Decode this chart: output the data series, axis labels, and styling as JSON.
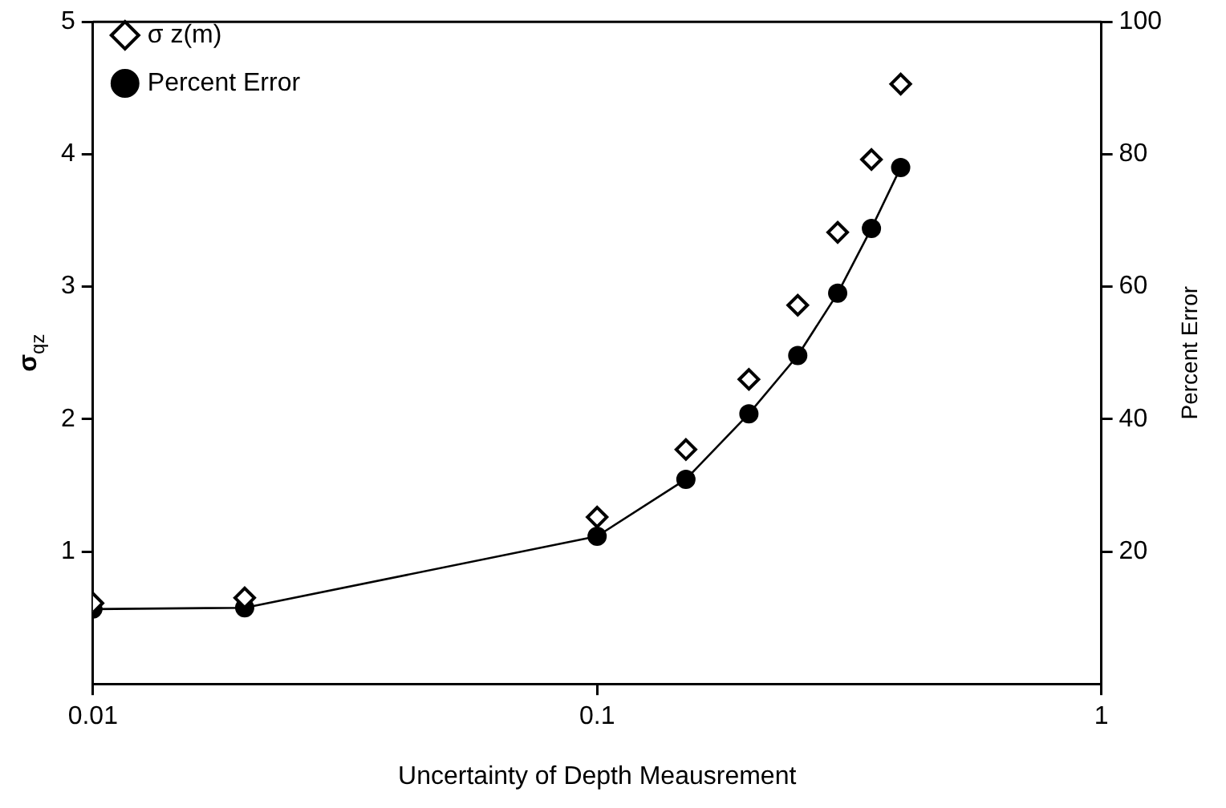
{
  "chart_data": {
    "type": "line",
    "xlabel": "Uncertainty of Depth Meausrement",
    "ylabel": "σ$_{qz}$",
    "y2label": "Percent Error",
    "log": "x",
    "xlim": [
      0.01,
      1
    ],
    "xticks": [
      0.01,
      0.1,
      1
    ],
    "ylim": [
      0,
      5
    ],
    "yticks": [
      1,
      2,
      3,
      4,
      5
    ],
    "y2lim": [
      0,
      100
    ],
    "y2ticks": [
      20,
      40,
      60,
      80,
      100
    ],
    "grid": false,
    "legend": "top left",
    "line_style": "solid",
    "series": [
      {
        "name": "σ z(m)",
        "type": "scatter",
        "marker": "diamond",
        "color": "#000000",
        "x": [
          0.01,
          0.02,
          0.1,
          0.15,
          0.2,
          0.25,
          0.3,
          0.35,
          0.4
        ],
        "values": [
          0.61,
          0.65,
          1.26,
          1.77,
          2.3,
          2.86,
          3.41,
          3.96,
          4.53
        ]
      },
      {
        "name": "Percent Error",
        "type": "line",
        "marker": "circle",
        "axis": "y2",
        "color": "#000000",
        "x": [
          0.01,
          0.02,
          0.1,
          0.15,
          0.2,
          0.25,
          0.3,
          0.35,
          0.4
        ],
        "values": [
          11.3,
          11.5,
          22.3,
          30.9,
          40.8,
          49.6,
          59,
          68.8,
          78
        ]
      }
    ]
  }
}
